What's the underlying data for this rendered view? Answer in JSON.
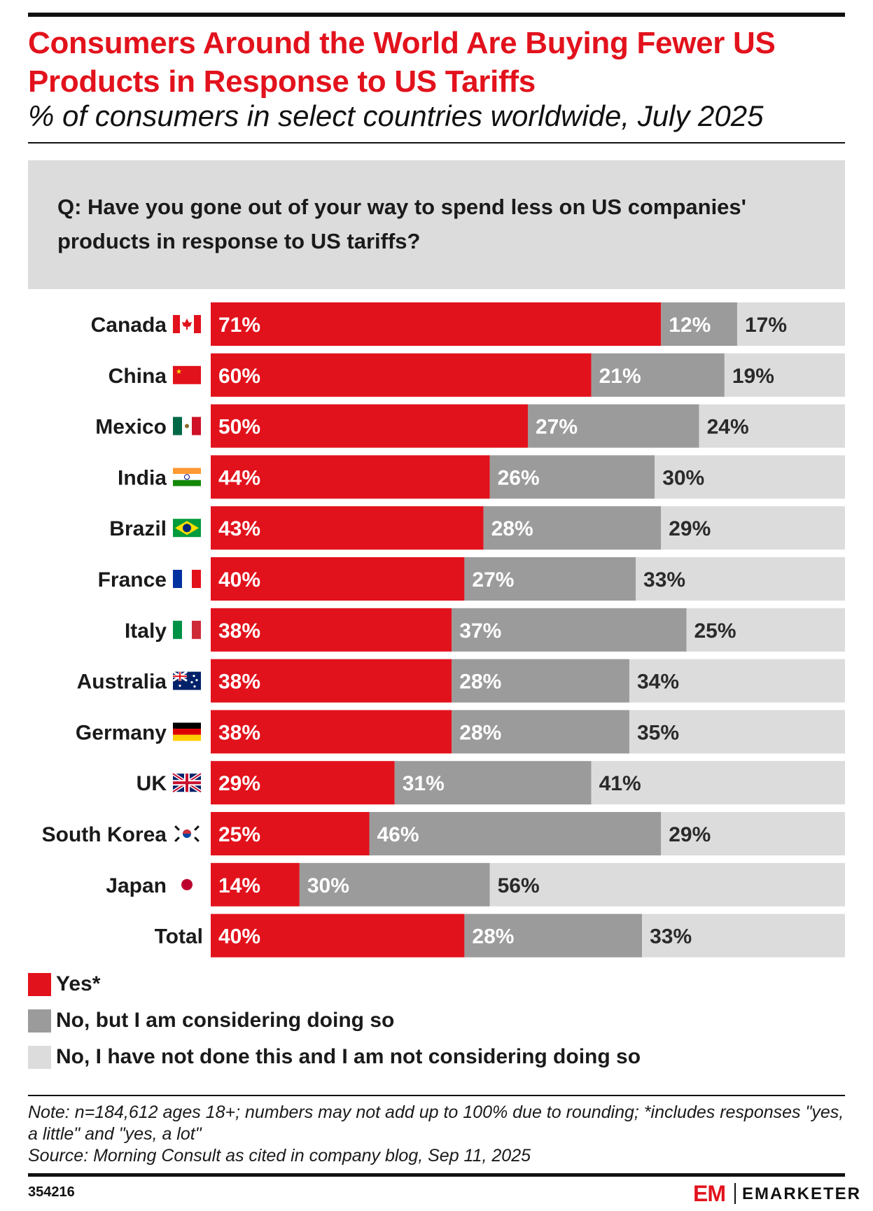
{
  "title": "Consumers Around the World Are Buying Fewer US Products in Response to US Tariffs",
  "subtitle": "% of consumers in select countries worldwide, July 2025",
  "question": "Q: Have you gone out of your way to spend less on US companies' products in response to US tariffs?",
  "colors": {
    "yes": "#e2121c",
    "considering": "#9b9b9b",
    "not_considering": "#dcdcdc",
    "title": "#e2121c"
  },
  "legend": [
    {
      "label": "Yes*",
      "color": "#e2121c"
    },
    {
      "label": "No, but I am considering doing so",
      "color": "#9b9b9b"
    },
    {
      "label": "No, I have not done this and I am not considering doing so",
      "color": "#dcdcdc"
    }
  ],
  "chart_data": {
    "type": "bar",
    "orientation": "horizontal",
    "stacked": true,
    "categories": [
      "Canada",
      "China",
      "Mexico",
      "India",
      "Brazil",
      "France",
      "Italy",
      "Australia",
      "Germany",
      "UK",
      "South Korea",
      "Japan",
      "Total"
    ],
    "flag_icons": [
      "canada-flag-icon",
      "china-flag-icon",
      "mexico-flag-icon",
      "india-flag-icon",
      "brazil-flag-icon",
      "france-flag-icon",
      "italy-flag-icon",
      "australia-flag-icon",
      "germany-flag-icon",
      "uk-flag-icon",
      "south-korea-flag-icon",
      "japan-flag-icon",
      ""
    ],
    "series": [
      {
        "name": "Yes*",
        "values": [
          71,
          60,
          50,
          44,
          43,
          40,
          38,
          38,
          38,
          29,
          25,
          14,
          40
        ]
      },
      {
        "name": "No, but I am considering doing so",
        "values": [
          12,
          21,
          27,
          26,
          28,
          27,
          37,
          28,
          28,
          31,
          46,
          30,
          28
        ]
      },
      {
        "name": "No, I have not done this and I am not considering doing so",
        "values": [
          17,
          19,
          24,
          30,
          29,
          33,
          25,
          34,
          35,
          41,
          29,
          56,
          33
        ]
      }
    ],
    "value_suffix": "%",
    "xlim": [
      0,
      100
    ],
    "legend_position": "bottom-left"
  },
  "note": "Note: n=184,612 ages 18+; numbers may not add up to 100% due to rounding; *includes responses \"yes, a little\" and \"yes, a lot\"",
  "source": "Source: Morning Consult as cited in company blog, Sep 11, 2025",
  "chart_id": "354216",
  "brand": {
    "mark": "EM",
    "name": "EMARKETER"
  }
}
